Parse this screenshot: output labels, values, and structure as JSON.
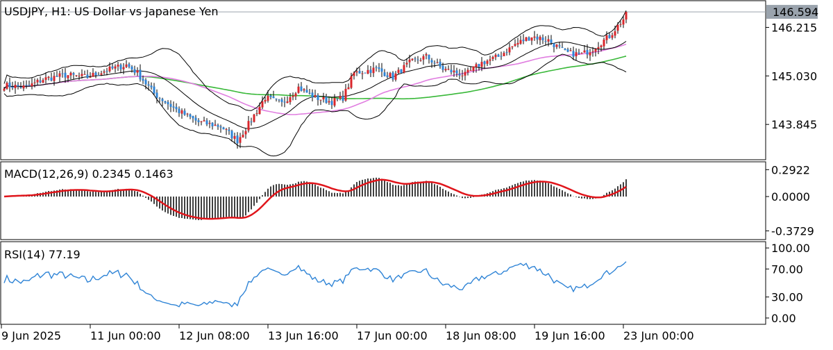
{
  "header": {
    "symbol": "USDJPY",
    "timeframe": "H1",
    "title_text": "USDJPY, H1:  US Dollar vs Japanese Yen"
  },
  "price_panel": {
    "ylim": [
      143.0,
      146.85
    ],
    "y_ticks": [
      "146.215",
      "145.030",
      "143.845"
    ],
    "y_tick_values": [
      146.215,
      145.03,
      143.845
    ],
    "last_price": 146.594,
    "last_price_label": "146.594"
  },
  "macd_panel": {
    "label": "MACD(12,26,9) 0.2345 0.1463",
    "ylim": [
      -0.46,
      0.37
    ],
    "y_ticks": [
      "0.2922",
      "0.0000",
      "-0.3729"
    ],
    "y_tick_values": [
      0.2922,
      0.0,
      -0.3729
    ]
  },
  "rsi_panel": {
    "label": "RSI(14) 77.19",
    "ylim": [
      -8,
      108
    ],
    "y_ticks": [
      "100.00",
      "70.00",
      "30.00",
      "0.00"
    ],
    "y_tick_values": [
      100,
      70,
      30,
      0
    ]
  },
  "x_axis": {
    "labels": [
      "9 Jun 2025",
      "11 Jun 00:00",
      "12 Jun 08:00",
      "13 Jun 16:00",
      "17 Jun 00:00",
      "18 Jun 08:00",
      "19 Jun 16:00",
      "23 Jun 00:00"
    ],
    "label_bar_index": [
      0,
      32,
      64,
      96,
      128,
      160,
      192,
      224
    ]
  },
  "colors": {
    "bull_candle": "#d9262b",
    "bear_candle": "#2f84d6",
    "wick": "#000000",
    "bollinger": "#000000",
    "ma_fast": "#e07ee0",
    "ma_slow": "#38b838",
    "macd_hist": "#000000",
    "macd_signal": "#e0151b",
    "rsi": "#2f84d6",
    "price_label_bg": "#9aa3ad",
    "price_line": "#9aa3ad"
  },
  "chart_data": {
    "type": "candlestick",
    "instrument": "USDJPY",
    "timeframe": "H1",
    "close_path_keypoints": [
      [
        0,
        144.8
      ],
      [
        8,
        144.75
      ],
      [
        14,
        144.95
      ],
      [
        22,
        145.05
      ],
      [
        30,
        145.0
      ],
      [
        36,
        145.15
      ],
      [
        44,
        145.3
      ],
      [
        48,
        145.1
      ],
      [
        54,
        144.6
      ],
      [
        62,
        144.2
      ],
      [
        70,
        143.9
      ],
      [
        78,
        143.8
      ],
      [
        84,
        143.45
      ],
      [
        88,
        143.85
      ],
      [
        94,
        144.5
      ],
      [
        100,
        144.35
      ],
      [
        106,
        144.75
      ],
      [
        112,
        144.5
      ],
      [
        118,
        144.4
      ],
      [
        122,
        144.5
      ],
      [
        126,
        145.1
      ],
      [
        134,
        145.2
      ],
      [
        140,
        145.0
      ],
      [
        146,
        145.35
      ],
      [
        152,
        145.5
      ],
      [
        158,
        145.2
      ],
      [
        166,
        145.05
      ],
      [
        172,
        145.35
      ],
      [
        178,
        145.5
      ],
      [
        184,
        145.8
      ],
      [
        190,
        146.0
      ],
      [
        196,
        145.9
      ],
      [
        202,
        145.6
      ],
      [
        208,
        145.55
      ],
      [
        212,
        145.7
      ],
      [
        218,
        146.0
      ],
      [
        224,
        146.5
      ]
    ],
    "bars": 225,
    "last_bar_index": 224,
    "indicators": {
      "bollinger_bands": "upper/middle/lower",
      "moving_averages": [
        "fast (magenta)",
        "slow (green)"
      ],
      "macd": {
        "fast": 12,
        "slow": 26,
        "signal": 9,
        "value": 0.2345,
        "signal_value": 0.1463
      },
      "rsi": {
        "period": 14,
        "value": 77.19
      }
    }
  }
}
